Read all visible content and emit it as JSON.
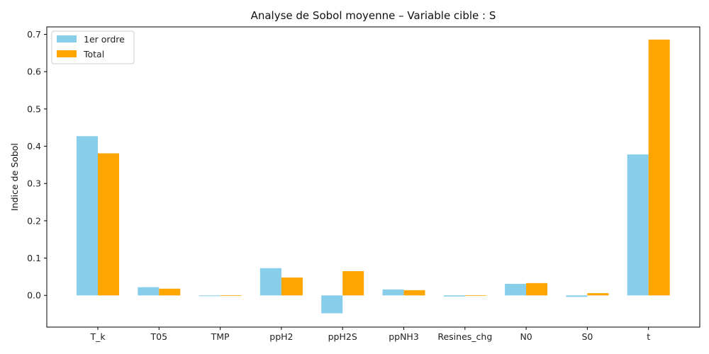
{
  "chart_data": {
    "type": "bar",
    "title": "Analyse de Sobol moyenne – Variable cible : S",
    "xlabel": "",
    "ylabel": "Indice de Sobol",
    "categories": [
      "T_k",
      "T05",
      "TMP",
      "ppH2",
      "ppH2S",
      "ppNH3",
      "Resines_chg",
      "N0",
      "S0",
      "t"
    ],
    "series": [
      {
        "name": "1er ordre",
        "color": "#87ceeb",
        "values": [
          0.427,
          0.022,
          -0.002,
          0.073,
          -0.048,
          0.016,
          -0.003,
          0.031,
          -0.004,
          0.378
        ]
      },
      {
        "name": "Total",
        "color": "#ffa500",
        "values": [
          0.381,
          0.018,
          0.0,
          0.048,
          0.065,
          0.014,
          0.0,
          0.033,
          0.006,
          0.686
        ]
      }
    ],
    "ylim": [
      -0.085,
      0.72
    ],
    "yticks": [
      0.0,
      0.1,
      0.2,
      0.3,
      0.4,
      0.5,
      0.6,
      0.7
    ],
    "ytick_labels": [
      "0.0",
      "0.1",
      "0.2",
      "0.3",
      "0.4",
      "0.5",
      "0.6",
      "0.7"
    ],
    "grid": false,
    "legend_position": "upper left"
  }
}
